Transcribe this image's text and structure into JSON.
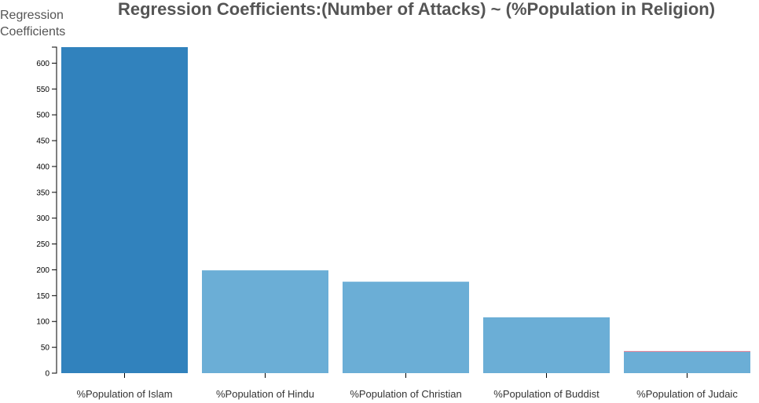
{
  "chart_data": {
    "type": "bar",
    "title": "Regression Coefficients:(Number of Attacks) ~ (%Population in Religion)",
    "ylabel_lines": [
      "Regression",
      "Coefficients"
    ],
    "xlabel": "",
    "categories": [
      "%Population of Islam",
      "%Population of Hindu",
      "%Population of Christian",
      "%Population of Buddist",
      "%Population of Judaic"
    ],
    "values": [
      631,
      199,
      177,
      108,
      42
    ],
    "ylim": [
      0,
      631
    ],
    "yticks": [
      0,
      50,
      100,
      150,
      200,
      250,
      300,
      350,
      400,
      450,
      500,
      550,
      600
    ],
    "grid": false,
    "legend": "none",
    "colors": {
      "highlight": "#3182bd",
      "default": "#6baed6",
      "judaic_top": "#e37b91"
    }
  }
}
